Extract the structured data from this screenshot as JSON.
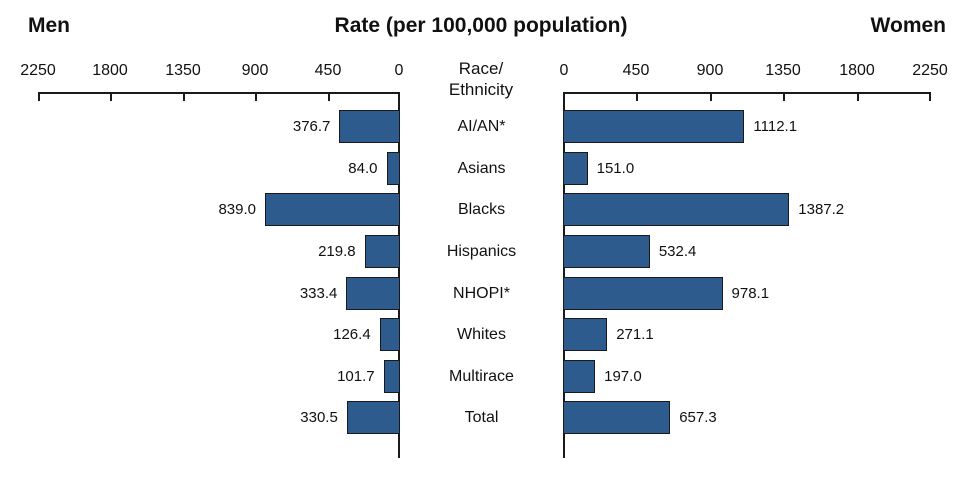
{
  "header": {
    "left": "Men",
    "center": "Rate (per 100,000 population)",
    "right": "Women"
  },
  "center_axis_label": {
    "line1": "Race/",
    "line2": "Ethnicity"
  },
  "axis": {
    "left_ticks": [
      "2250",
      "1800",
      "1350",
      "900",
      "450",
      "0"
    ],
    "right_ticks": [
      "0",
      "450",
      "900",
      "1350",
      "1800",
      "2250"
    ]
  },
  "rows": [
    {
      "label": "AI/AN*",
      "men": "376.7",
      "women": "1112.1"
    },
    {
      "label": "Asians",
      "men": "84.0",
      "women": "151.0"
    },
    {
      "label": "Blacks",
      "men": "839.0",
      "women": "1387.2"
    },
    {
      "label": "Hispanics",
      "men": "219.8",
      "women": "532.4"
    },
    {
      "label": "NHOPI*",
      "men": "333.4",
      "women": "978.1"
    },
    {
      "label": "Whites",
      "men": "126.4",
      "women": "271.1"
    },
    {
      "label": "Multirace",
      "men": "101.7",
      "women": "197.0"
    },
    {
      "label": "Total",
      "men": "330.5",
      "women": "657.3"
    }
  ],
  "chart_data": {
    "type": "bar",
    "layout": "horizontal back-to-back (tornado)",
    "title": "Rate (per 100,000 population)",
    "left_panel_label": "Men",
    "right_panel_label": "Women",
    "center_axis_label": "Race/ Ethnicity",
    "categories": [
      "AI/AN*",
      "Asians",
      "Blacks",
      "Hispanics",
      "NHOPI*",
      "Whites",
      "Multirace",
      "Total"
    ],
    "series": [
      {
        "name": "Men",
        "values": [
          376.7,
          84.0,
          839.0,
          219.8,
          333.4,
          126.4,
          101.7,
          330.5
        ]
      },
      {
        "name": "Women",
        "values": [
          1112.1,
          151.0,
          1387.2,
          532.4,
          978.1,
          271.1,
          197.0,
          657.3
        ]
      }
    ],
    "xlim": [
      0,
      2250
    ],
    "xticks": [
      0,
      450,
      900,
      1350,
      1800,
      2250
    ],
    "grid": false,
    "bar_color": "#2E5B8E"
  }
}
